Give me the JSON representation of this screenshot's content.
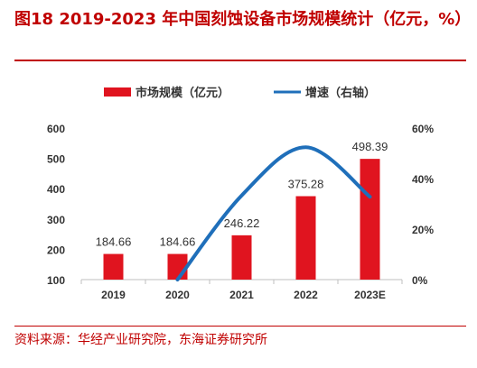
{
  "title": "图18  2019-2023 年中国刻蚀设备市场规模统计（亿元，%）",
  "source": "资料来源：华经产业研究院，东海证券研究所",
  "colors": {
    "bar": "#e0141f",
    "line": "#1f6fba",
    "title": "#c00000"
  },
  "chart_data": {
    "type": "bar",
    "categories": [
      "2019",
      "2020",
      "2021",
      "2022",
      "2023E"
    ],
    "series": [
      {
        "name": "市场规模（亿元）",
        "type": "bar",
        "axis": "left",
        "values": [
          184.66,
          184.66,
          246.22,
          375.28,
          498.39
        ],
        "value_labels": [
          "184.66",
          "184.66",
          "246.22",
          "375.28",
          "498.39"
        ]
      },
      {
        "name": "增速（右轴）",
        "type": "line",
        "axis": "right",
        "smooth": true,
        "values": [
          null,
          0.0,
          33.3,
          52.4,
          32.8
        ]
      }
    ],
    "y_left": {
      "lim": [
        100,
        600
      ],
      "ticks": [
        "100",
        "200",
        "300",
        "400",
        "500",
        "600"
      ]
    },
    "y_right": {
      "lim": [
        0,
        60
      ],
      "ticks": [
        "0%",
        "20%",
        "40%",
        "60%"
      ]
    },
    "legend": {
      "position": "top"
    },
    "grid": false
  }
}
